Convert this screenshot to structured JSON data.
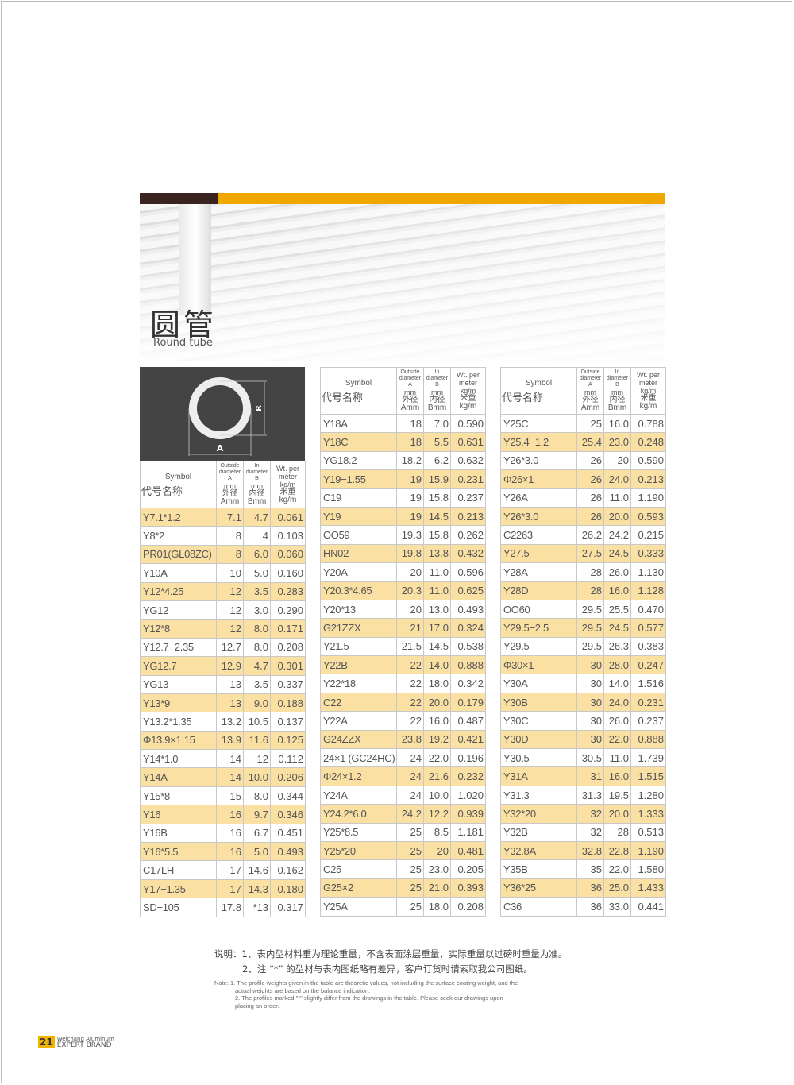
{
  "header": {
    "title_cn": "圆管",
    "title_en": "Round tube",
    "colors": {
      "dark_bar": "#3a2420",
      "accent_bar": "#f0a800",
      "row_highlight": "#fbe0a4"
    }
  },
  "diagram": {
    "label_a": "A",
    "label_r": "R"
  },
  "columns": {
    "symbol_en": "Symbol",
    "symbol_cn": "代号名称",
    "a_en": "Outside diameter A",
    "a_unit": "mm",
    "a_cn": "外径Amm",
    "b_en": "In diameter B",
    "b_unit": "mm",
    "b_cn": "内径Bmm",
    "w_en": "Wt. per meter",
    "w_unit": "kg/m",
    "w_cn": "米重kg/m"
  },
  "tables": [
    {
      "rows": [
        [
          "Y7.1*1.2",
          "7.1",
          "4.7",
          "0.061"
        ],
        [
          "Y8*2",
          "8",
          "4",
          "0.103"
        ],
        [
          "PR01(GL08ZC)",
          "8",
          "6.0",
          "0.060"
        ],
        [
          "Y10A",
          "10",
          "5.0",
          "0.160"
        ],
        [
          "Y12*4.25",
          "12",
          "3.5",
          "0.283"
        ],
        [
          "YG12",
          "12",
          "3.0",
          "0.290"
        ],
        [
          "Y12*8",
          "12",
          "8.0",
          "0.171"
        ],
        [
          "Y12.7−2.35",
          "12.7",
          "8.0",
          "0.208"
        ],
        [
          "YG12.7",
          "12.9",
          "4.7",
          "0.301"
        ],
        [
          "YG13",
          "13",
          "3.5",
          "0.337"
        ],
        [
          "Y13*9",
          "13",
          "9.0",
          "0.188"
        ],
        [
          "Y13.2*1.35",
          "13.2",
          "10.5",
          "0.137"
        ],
        [
          "Φ13.9×1.15",
          "13.9",
          "11.6",
          "0.125"
        ],
        [
          "Y14*1.0",
          "14",
          "12",
          "0.112"
        ],
        [
          "Y14A",
          "14",
          "10.0",
          "0.206"
        ],
        [
          "Y15*8",
          "15",
          "8.0",
          "0.344"
        ],
        [
          "Y16",
          "16",
          "9.7",
          "0.346"
        ],
        [
          "Y16B",
          "16",
          "6.7",
          "0.451"
        ],
        [
          "Y16*5.5",
          "16",
          "5.0",
          "0.493"
        ],
        [
          "C17LH",
          "17",
          "14.6",
          "0.162"
        ],
        [
          "Y17−1.35",
          "17",
          "14.3",
          "0.180"
        ],
        [
          "SD−105",
          "17.8",
          "*13",
          "0.317"
        ]
      ]
    },
    {
      "rows": [
        [
          "Y18A",
          "18",
          "7.0",
          "0.590"
        ],
        [
          "Y18C",
          "18",
          "5.5",
          "0.631"
        ],
        [
          "YG18.2",
          "18.2",
          "6.2",
          "0.632"
        ],
        [
          "Y19−1.55",
          "19",
          "15.9",
          "0.231"
        ],
        [
          "C19",
          "19",
          "15.8",
          "0.237"
        ],
        [
          "Y19",
          "19",
          "14.5",
          "0.213"
        ],
        [
          "OO59",
          "19.3",
          "15.8",
          "0.262"
        ],
        [
          "HN02",
          "19.8",
          "13.8",
          "0.432"
        ],
        [
          "Y20A",
          "20",
          "11.0",
          "0.596"
        ],
        [
          "Y20.3*4.65",
          "20.3",
          "11.0",
          "0.625"
        ],
        [
          "Y20*13",
          "20",
          "13.0",
          "0.493"
        ],
        [
          "G21ZZX",
          "21",
          "17.0",
          "0.324"
        ],
        [
          "Y21.5",
          "21.5",
          "14.5",
          "0.538"
        ],
        [
          "Y22B",
          "22",
          "14.0",
          "0.888"
        ],
        [
          "Y22*18",
          "22",
          "18.0",
          "0.342"
        ],
        [
          "C22",
          "22",
          "20.0",
          "0.179"
        ],
        [
          "Y22A",
          "22",
          "16.0",
          "0.487"
        ],
        [
          "G24ZZX",
          "23.8",
          "19.2",
          "0.421"
        ],
        [
          "24×1 (GC24HC)",
          "24",
          "22.0",
          "0.196"
        ],
        [
          "Φ24×1.2",
          "24",
          "21.6",
          "0.232"
        ],
        [
          "Y24A",
          "24",
          "10.0",
          "1.020"
        ],
        [
          "Y24.2*6.0",
          "24.2",
          "12.2",
          "0.939"
        ],
        [
          "Y25*8.5",
          "25",
          "8.5",
          "1.181"
        ],
        [
          "Y25*20",
          "25",
          "20",
          "0.481"
        ],
        [
          "C25",
          "25",
          "23.0",
          "0.205"
        ],
        [
          "G25×2",
          "25",
          "21.0",
          "0.393"
        ],
        [
          "Y25A",
          "25",
          "18.0",
          "0.208"
        ]
      ]
    },
    {
      "rows": [
        [
          "Y25C",
          "25",
          "16.0",
          "0.788"
        ],
        [
          "Y25.4−1.2",
          "25.4",
          "23.0",
          "0.248"
        ],
        [
          "Y26*3.0",
          "26",
          "20",
          "0.590"
        ],
        [
          "Φ26×1",
          "26",
          "24.0",
          "0.213"
        ],
        [
          "Y26A",
          "26",
          "11.0",
          "1.190"
        ],
        [
          "Y26*3.0",
          "26",
          "20.0",
          "0.593"
        ],
        [
          "C2263",
          "26.2",
          "24.2",
          "0.215"
        ],
        [
          "Y27.5",
          "27.5",
          "24.5",
          "0.333"
        ],
        [
          "Y28A",
          "28",
          "26.0",
          "1.130"
        ],
        [
          "Y28D",
          "28",
          "16.0",
          "1.128"
        ],
        [
          "OO60",
          "29.5",
          "25.5",
          "0.470"
        ],
        [
          "Y29.5−2.5",
          "29.5",
          "24.5",
          "0.577"
        ],
        [
          "Y29.5",
          "29.5",
          "26.3",
          "0.383"
        ],
        [
          "Φ30×1",
          "30",
          "28.0",
          "0.247"
        ],
        [
          "Y30A",
          "30",
          "14.0",
          "1.516"
        ],
        [
          "Y30B",
          "30",
          "24.0",
          "0.231"
        ],
        [
          "Y30C",
          "30",
          "26.0",
          "0.237"
        ],
        [
          "Y30D",
          "30",
          "22.0",
          "0.888"
        ],
        [
          "Y30.5",
          "30.5",
          "11.0",
          "1.739"
        ],
        [
          "Y31A",
          "31",
          "16.0",
          "1.515"
        ],
        [
          "Y31.3",
          "31.3",
          "19.5",
          "1.280"
        ],
        [
          "Y32*20",
          "32",
          "20.0",
          "1.333"
        ],
        [
          "Y32B",
          "32",
          "28",
          "0.513"
        ],
        [
          "Y32.8A",
          "32.8",
          "22.8",
          "1.190"
        ],
        [
          "Y35B",
          "35",
          "22.0",
          "1.580"
        ],
        [
          "Y36*25",
          "36",
          "25.0",
          "1.433"
        ],
        [
          "C36",
          "36",
          "33.0",
          "0.441"
        ]
      ]
    }
  ],
  "notes": {
    "cn_1": "说明：1、表内型材料重为理论重量，不含表面涂层重量，实际重量以过磅时重量为准。",
    "cn_2": "2、注 “*” 的型材与表内图纸略有差异，客户订货时请索取我公司图纸。",
    "en_1a": "Note: 1. The profile weights given in the table are theoretic values, not including the surface coating weight, and the",
    "en_1b": "actual weights are based on the balance indication.",
    "en_2a": "2. The profiles marked \"*\" slightly differ from the drawings in the table. Please seek our drawings upon",
    "en_2b": "placing an order."
  },
  "footer": {
    "page": "21",
    "company": "Weichang Aluminum",
    "brand": "EXPERT BRAND"
  }
}
